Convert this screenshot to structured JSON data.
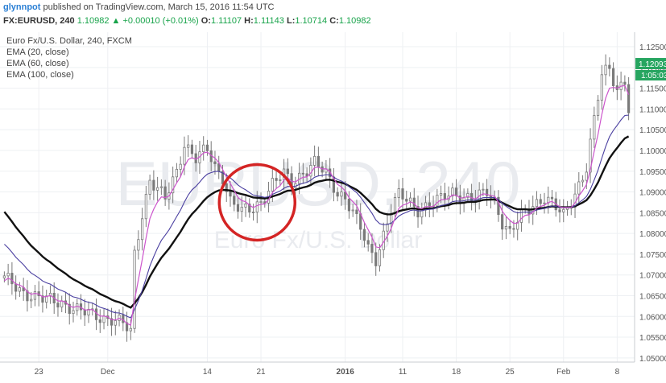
{
  "header": {
    "user": "glynnpot",
    "published": "published on TradingView.com, March 15, 2016 11:54 UTC",
    "symbol": "FX:EURUSD, 240",
    "last": "1.10982",
    "arrow": "▲",
    "change": "+0.00010 (+0.01%)",
    "o_label": "O:",
    "o_val": "1.11107",
    "h_label": "H:",
    "h_val": "1.11143",
    "l_label": "L:",
    "l_val": "1.10714",
    "c_label": "C:",
    "c_val": "1.10982"
  },
  "chart_data": {
    "type": "candlestick",
    "legend": [
      "Euro Fx/U.S. Dollar, 240, FXCM",
      "EMA (20, close)",
      "EMA (60, close)",
      "EMA (100, close)"
    ],
    "watermark": [
      "EURUSD, 240",
      "Euro Fx/U.S. Dollar"
    ],
    "y_ticks": [
      "1.12500",
      "1.12000",
      "1.11500",
      "1.11000",
      "1.10500",
      "1.10000",
      "1.09500",
      "1.09000",
      "1.08500",
      "1.08000",
      "1.07500",
      "1.07000",
      "1.06500",
      "1.06000",
      "1.05500",
      "1.05000"
    ],
    "ylim": [
      1.049,
      1.1285
    ],
    "x_ticks": [
      {
        "label": "23",
        "idx": 9
      },
      {
        "label": "Dec",
        "idx": 27
      },
      {
        "label": "14",
        "idx": 53
      },
      {
        "label": "21",
        "idx": 67
      },
      {
        "label": "2016",
        "idx": 89
      },
      {
        "label": "11",
        "idx": 104
      },
      {
        "label": "18",
        "idx": 118
      },
      {
        "label": "25",
        "idx": 132
      },
      {
        "label": "Feb",
        "idx": 146
      },
      {
        "label": "8",
        "idx": 160
      }
    ],
    "n_bars": 164,
    "price_tag": "1.12093",
    "time_tag": "1:05:03",
    "colors": {
      "candle": "#7a7a7a",
      "ema20": "#cc55cc",
      "ema60": "#4a3fa0",
      "ema100": "#111111",
      "circle": "#d42424",
      "tag": "#27a560"
    },
    "keypoints": [
      [
        0,
        1.069
      ],
      [
        5,
        1.066
      ],
      [
        10,
        1.064
      ],
      [
        15,
        1.0635
      ],
      [
        20,
        1.061
      ],
      [
        25,
        1.06
      ],
      [
        28,
        1.0595
      ],
      [
        31,
        1.058
      ],
      [
        33,
        1.056
      ],
      [
        34,
        1.075
      ],
      [
        36,
        1.085
      ],
      [
        38,
        1.093
      ],
      [
        42,
        1.088
      ],
      [
        45,
        1.095
      ],
      [
        47,
        1.102
      ],
      [
        50,
        1.098
      ],
      [
        53,
        1.1
      ],
      [
        55,
        1.096
      ],
      [
        57,
        1.094
      ],
      [
        59,
        1.088
      ],
      [
        62,
        1.085
      ],
      [
        65,
        1.086
      ],
      [
        67,
        1.088
      ],
      [
        70,
        1.092
      ],
      [
        73,
        1.094
      ],
      [
        75,
        1.092
      ],
      [
        78,
        1.095
      ],
      [
        81,
        1.097
      ],
      [
        84,
        1.094
      ],
      [
        87,
        1.09
      ],
      [
        89,
        1.089
      ],
      [
        91,
        1.085
      ],
      [
        93,
        1.081
      ],
      [
        95,
        1.076
      ],
      [
        97,
        1.074
      ],
      [
        99,
        1.08
      ],
      [
        101,
        1.086
      ],
      [
        103,
        1.089
      ],
      [
        105,
        1.088
      ],
      [
        108,
        1.086
      ],
      [
        111,
        1.087
      ],
      [
        114,
        1.088
      ],
      [
        117,
        1.09
      ],
      [
        120,
        1.089
      ],
      [
        123,
        1.088
      ],
      [
        126,
        1.09
      ],
      [
        128,
        1.088
      ],
      [
        130,
        1.083
      ],
      [
        132,
        1.08
      ],
      [
        135,
        1.084
      ],
      [
        138,
        1.087
      ],
      [
        141,
        1.089
      ],
      [
        144,
        1.086
      ],
      [
        146,
        1.084
      ],
      [
        148,
        1.088
      ],
      [
        150,
        1.092
      ],
      [
        152,
        1.096
      ],
      [
        154,
        1.107
      ],
      [
        156,
        1.118
      ],
      [
        158,
        1.12
      ],
      [
        160,
        1.115
      ],
      [
        162,
        1.117
      ],
      [
        163,
        1.1098
      ]
    ],
    "ema20_start": 1.068,
    "ema60_start": 1.0785,
    "ema100_start": 1.0865
  }
}
